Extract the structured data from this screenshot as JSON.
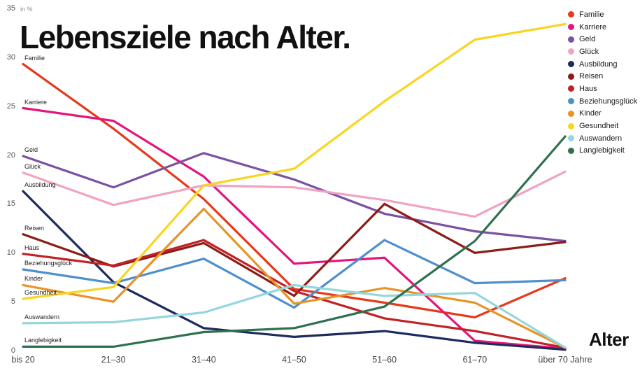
{
  "chart_data": {
    "type": "line",
    "title": "Lebensziele nach Alter.",
    "unit_label": "in %",
    "xlabel": "Alter",
    "ylim": [
      0,
      35
    ],
    "y_ticks": [
      0,
      5,
      10,
      15,
      20,
      25,
      30,
      35
    ],
    "categories": [
      "bis 20",
      "21–30",
      "31–40",
      "41–50",
      "51–60",
      "61–70",
      "über 70 Jahre"
    ],
    "grid": false,
    "legend_position": "top-right",
    "series": [
      {
        "name": "Familie",
        "color": "#e6391c",
        "values": [
          29.3,
          22.7,
          15.5,
          6.3,
          4.9,
          3.4,
          7.4
        ]
      },
      {
        "name": "Karriere",
        "color": "#e5147d",
        "values": [
          24.8,
          23.5,
          17.8,
          8.9,
          9.5,
          1.0,
          0.2
        ]
      },
      {
        "name": "Geld",
        "color": "#7a52a1",
        "values": [
          19.9,
          16.7,
          20.2,
          17.5,
          14.0,
          12.2,
          11.2
        ]
      },
      {
        "name": "Glück",
        "color": "#f1a3c4",
        "values": [
          18.2,
          14.9,
          16.9,
          16.7,
          15.4,
          13.7,
          18.3
        ]
      },
      {
        "name": "Ausbildung",
        "color": "#1c2a5e",
        "values": [
          16.3,
          7.0,
          2.3,
          1.4,
          2.0,
          0.8,
          0.1
        ]
      },
      {
        "name": "Reisen",
        "color": "#8c1c16",
        "values": [
          11.9,
          8.6,
          11.0,
          5.6,
          15.0,
          10.0,
          11.1
        ]
      },
      {
        "name": "Haus",
        "color": "#c22125",
        "values": [
          9.9,
          8.7,
          11.3,
          6.1,
          3.3,
          2.0,
          0.3
        ]
      },
      {
        "name": "Beziehungsglück",
        "color": "#4e8fce",
        "values": [
          8.3,
          6.9,
          9.4,
          4.4,
          11.3,
          6.9,
          7.2
        ]
      },
      {
        "name": "Kinder",
        "color": "#e79327",
        "values": [
          6.7,
          5.0,
          14.5,
          4.8,
          6.4,
          4.9,
          0.3
        ]
      },
      {
        "name": "Gesundheit",
        "color": "#f9d520",
        "values": [
          5.3,
          6.5,
          16.9,
          18.6,
          25.5,
          31.8,
          33.4
        ]
      },
      {
        "name": "Auswandern",
        "color": "#95d6dc",
        "values": [
          2.8,
          2.9,
          3.9,
          6.7,
          5.6,
          5.9,
          0.3
        ]
      },
      {
        "name": "Langlebigkeit",
        "color": "#30704f",
        "values": [
          0.4,
          0.4,
          1.9,
          2.3,
          4.5,
          11.2,
          21.9
        ]
      }
    ]
  }
}
